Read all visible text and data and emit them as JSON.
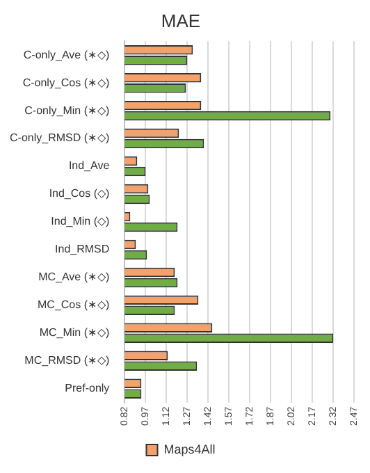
{
  "chart_data": {
    "type": "bar",
    "orientation": "horizontal",
    "title": "MAE",
    "categories": [
      "C-only_Ave (∗◇)",
      "C-only_Cos (∗◇)",
      "C-only_Min (∗◇)",
      "C-only_RMSD (∗◇)",
      "Ind_Ave",
      "Ind_Cos (◇)",
      "Ind_Min (◇)",
      "Ind_RMSD",
      "MC_Ave (∗◇)",
      "MC_Cos (∗◇)",
      "MC_Min (∗◇)",
      "MC_RMSD (∗◇)",
      "Pref-only"
    ],
    "series": [
      {
        "name": "Maps4All",
        "color": "#f4a26b",
        "values": [
          1.31,
          1.37,
          1.37,
          1.21,
          0.91,
          0.99,
          0.86,
          0.9,
          1.18,
          1.35,
          1.45,
          1.13,
          0.94
        ]
      },
      {
        "color": "#70ad47",
        "values": [
          1.27,
          1.26,
          2.3,
          1.39,
          0.97,
          1.0,
          1.2,
          0.98,
          1.2,
          1.18,
          2.32,
          1.34,
          0.94
        ]
      }
    ],
    "xlim": [
      0.82,
      2.47
    ],
    "xticks": [
      0.82,
      0.97,
      1.12,
      1.27,
      1.42,
      1.57,
      1.72,
      1.87,
      2.02,
      2.17,
      2.32,
      2.47
    ],
    "grid": "x",
    "legend": "bottom"
  }
}
